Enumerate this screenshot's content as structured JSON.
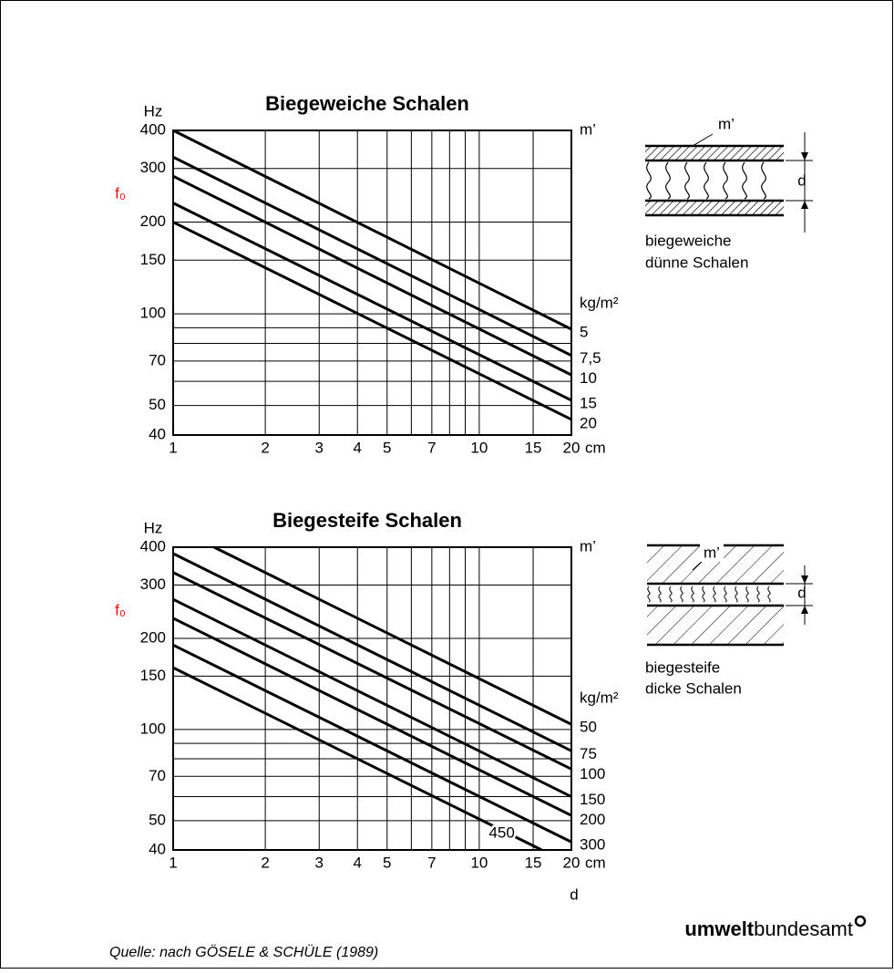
{
  "chart_data": [
    {
      "type": "line",
      "title": "Biegeweiche Schalen",
      "y_unit": "Hz",
      "y_symbol": "f₀",
      "y_symbol_color": "#ff0000",
      "x_unit": "cm",
      "legend_title": "kg/m²",
      "legend_header": "m’",
      "xscale": "log",
      "yscale": "log",
      "grid": true,
      "xlim": [
        1,
        20
      ],
      "ylim": [
        40,
        400
      ],
      "xticks": [
        1,
        2,
        3,
        4,
        5,
        7,
        10,
        15,
        20
      ],
      "xgrid": [
        6,
        8,
        9
      ],
      "yticks": [
        40,
        50,
        70,
        100,
        150,
        200,
        300,
        400
      ],
      "ygrid": [
        60,
        80,
        90
      ],
      "series": [
        {
          "name": "5",
          "color": "#000000",
          "x": [
            1,
            20
          ],
          "values": [
            400,
            89
          ]
        },
        {
          "name": "7,5",
          "color": "#000000",
          "x": [
            1,
            20
          ],
          "values": [
            327,
            73
          ]
        },
        {
          "name": "10",
          "color": "#000000",
          "x": [
            1,
            20
          ],
          "values": [
            283,
            63
          ]
        },
        {
          "name": "15",
          "color": "#000000",
          "x": [
            1,
            20
          ],
          "values": [
            231,
            52
          ]
        },
        {
          "name": "20",
          "color": "#000000",
          "x": [
            1,
            20
          ],
          "values": [
            200,
            45
          ]
        }
      ]
    },
    {
      "type": "line",
      "title": "Biegesteife Schalen",
      "y_unit": "Hz",
      "y_symbol": "f₀",
      "y_symbol_color": "#ff0000",
      "x_unit": "cm",
      "x_label": "d",
      "legend_title": "kg/m²",
      "legend_header": "m’",
      "xscale": "log",
      "yscale": "log",
      "grid": true,
      "xlim": [
        1,
        20
      ],
      "ylim": [
        40,
        400
      ],
      "xticks": [
        1,
        2,
        3,
        4,
        5,
        7,
        10,
        15,
        20
      ],
      "xgrid": [
        6,
        8,
        9
      ],
      "yticks": [
        40,
        50,
        70,
        100,
        150,
        200,
        300,
        400
      ],
      "ygrid": [
        60,
        80,
        90
      ],
      "series": [
        {
          "name": "50",
          "color": "#000000",
          "x": [
            1.36,
            20
          ],
          "values": [
            400,
            104
          ]
        },
        {
          "name": "75",
          "color": "#000000",
          "x": [
            1,
            20
          ],
          "values": [
            381,
            85
          ]
        },
        {
          "name": "100",
          "color": "#000000",
          "x": [
            1,
            20
          ],
          "values": [
            330,
            74
          ]
        },
        {
          "name": "150",
          "color": "#000000",
          "x": [
            1,
            20
          ],
          "values": [
            269,
            60
          ]
        },
        {
          "name": "200",
          "color": "#000000",
          "x": [
            1,
            20
          ],
          "values": [
            233,
            52
          ]
        },
        {
          "name": "300",
          "color": "#000000",
          "x": [
            1,
            20
          ],
          "values": [
            190,
            42.5
          ]
        },
        {
          "name": "450",
          "color": "#000000",
          "x": [
            1,
            16
          ],
          "values": [
            160,
            40
          ]
        }
      ]
    }
  ],
  "diagrams": [
    {
      "mass_label": "m’",
      "thickness_label": "d",
      "caption": [
        "biegeweiche",
        "dünne Schalen"
      ]
    },
    {
      "mass_label": "m’",
      "thickness_label": "d",
      "caption": [
        "biegesteife",
        "dicke Schalen"
      ]
    }
  ],
  "footer": {
    "source": "Quelle: nach GÖSELE & SCHÜLE (1989)",
    "logo_bold": "umwelt",
    "logo_light": "bundesamt"
  }
}
